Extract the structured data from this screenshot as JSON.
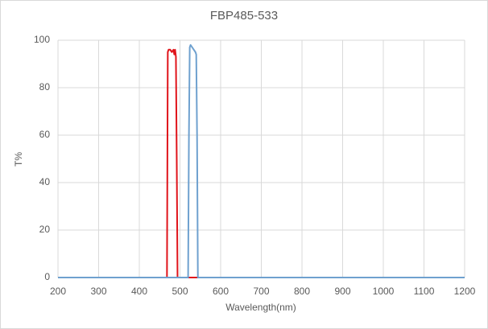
{
  "chart_data": {
    "type": "line",
    "title": "FBP485-533",
    "x_label": "Wavelength(nm)",
    "y_label": "T%",
    "xlim": [
      200,
      1200
    ],
    "xticks": [
      200,
      300,
      400,
      500,
      600,
      700,
      800,
      900,
      1000,
      1100,
      1200
    ],
    "ylim": [
      0,
      100
    ],
    "yticks": [
      0,
      20,
      40,
      60,
      80,
      100
    ],
    "grid": true,
    "series": [
      {
        "color": "#e0141b",
        "x": [
          200,
          468,
          470,
          472,
          476,
          480,
          484,
          486,
          488,
          490,
          492,
          494,
          1200
        ],
        "values": [
          0,
          0,
          95,
          96,
          96,
          95,
          96,
          94,
          96,
          93,
          50,
          0,
          0
        ]
      },
      {
        "color": "#6fa1cf",
        "x": [
          200,
          520,
          522,
          524,
          526,
          530,
          534,
          538,
          540,
          542,
          544,
          1200
        ],
        "values": [
          0,
          0,
          60,
          97,
          98,
          97,
          96,
          95,
          94,
          60,
          0,
          0
        ]
      }
    ]
  }
}
